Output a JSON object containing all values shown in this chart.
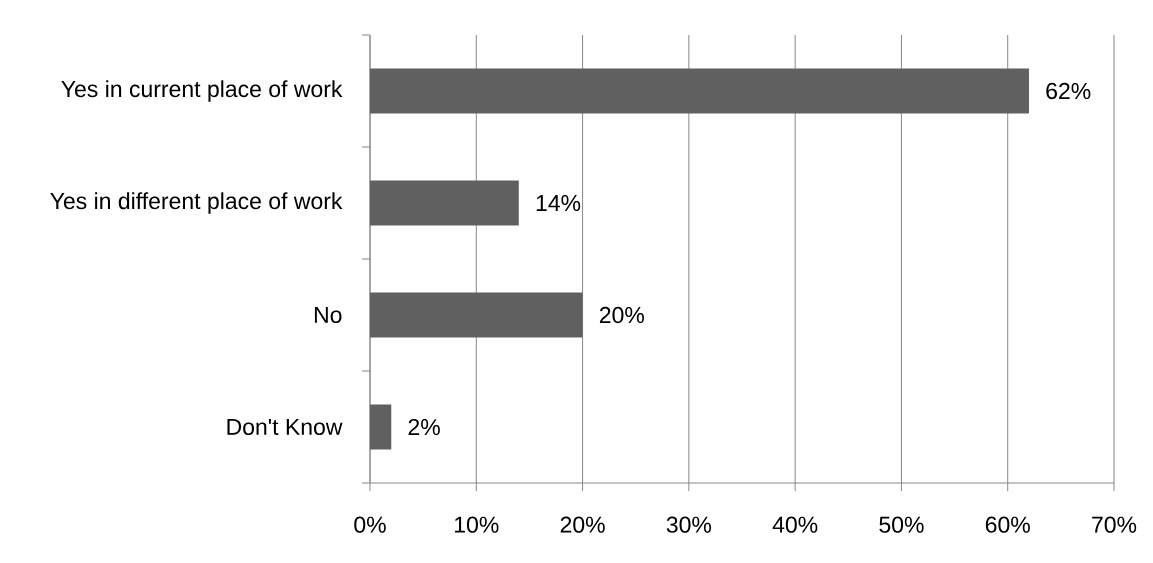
{
  "chart_data": {
    "type": "bar",
    "orientation": "horizontal",
    "categories": [
      "Yes in current place of work",
      "Yes in different place of work",
      "No",
      "Don't Know"
    ],
    "values": [
      62,
      14,
      20,
      2
    ],
    "value_labels": [
      "62%",
      "14%",
      "20%",
      "2%"
    ],
    "color": "#606060",
    "xlim": [
      0,
      70
    ],
    "xticks": [
      {
        "value": 0,
        "label": "0%"
      },
      {
        "value": 10,
        "label": "10%"
      },
      {
        "value": 20,
        "label": "20%"
      },
      {
        "value": 30,
        "label": "30%"
      },
      {
        "value": 40,
        "label": "40%"
      },
      {
        "value": 50,
        "label": "50%"
      },
      {
        "value": 60,
        "label": "60%"
      },
      {
        "value": 70,
        "label": "70%"
      }
    ],
    "grid": "x"
  }
}
